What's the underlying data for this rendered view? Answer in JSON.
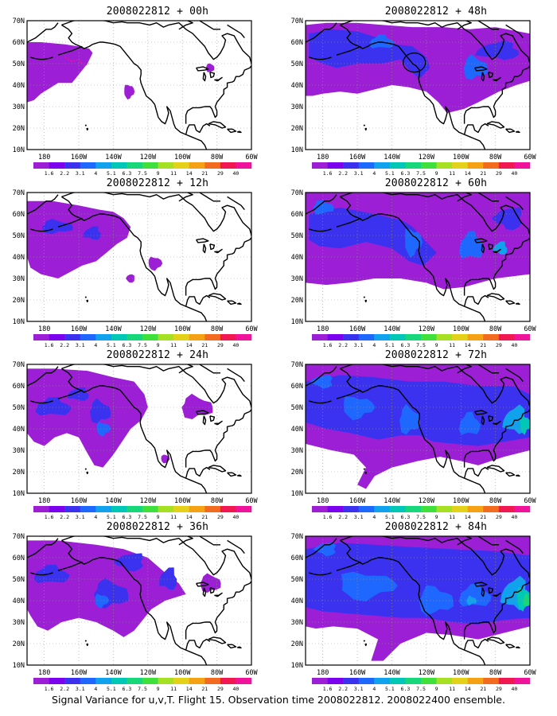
{
  "lat_labels": [
    "70N",
    "60N",
    "50N",
    "40N",
    "30N",
    "20N",
    "10N"
  ],
  "lon_labels": [
    "180",
    "160W",
    "140W",
    "120W",
    "100W",
    "80W",
    "60W"
  ],
  "colorbar": {
    "labels": [
      "1.6",
      "2.2",
      "3.1",
      "4",
      "5.1",
      "6.3",
      "7.5",
      "9",
      "11",
      "14",
      "21",
      "29",
      "40"
    ],
    "colors": [
      "#9c1fd6",
      "#7b00ee",
      "#3b32f0",
      "#1e68ff",
      "#11a2ee",
      "#00c7b6",
      "#18d77a",
      "#3fe03c",
      "#a6e022",
      "#e3d11a",
      "#f5a114",
      "#f36b20",
      "#f11852",
      "#f0149a"
    ]
  },
  "caption": "Signal Variance for u,v,T. Flight 15. Observation time 2008022812. 2008022400 ensemble.",
  "panels": [
    {
      "title": "2008022812 + 00h"
    },
    {
      "title": "2008022812 + 48h"
    },
    {
      "title": "2008022812 + 12h"
    },
    {
      "title": "2008022812 + 60h"
    },
    {
      "title": "2008022812 + 24h"
    },
    {
      "title": "2008022812 + 72h"
    },
    {
      "title": "2008022812 + 36h"
    },
    {
      "title": "2008022812 + 84h"
    }
  ]
}
